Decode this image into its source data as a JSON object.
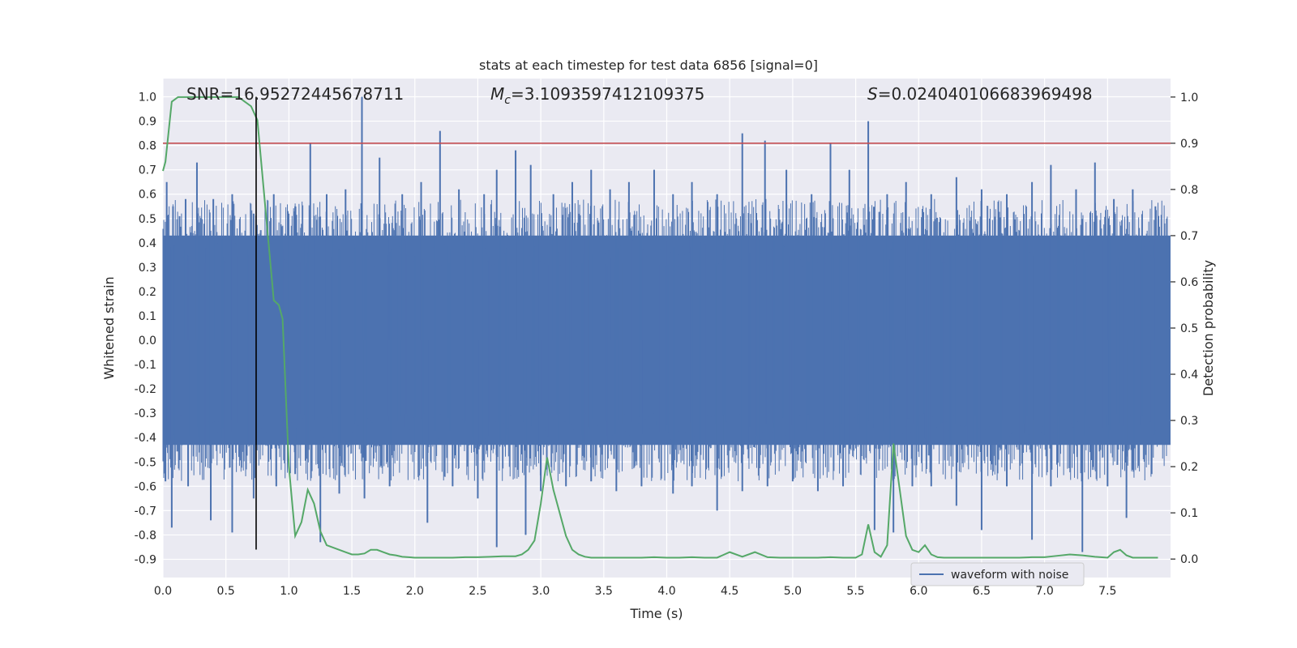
{
  "chart_data": {
    "type": "line",
    "title": "stats at each timestep for test data 6856 [signal=0]",
    "xlabel": "Time (s)",
    "ylabel": "Whitened strain",
    "ylabel_right": "Detection probability",
    "xlim": [
      0.0,
      8.0
    ],
    "ylim": [
      -0.975,
      1.075
    ],
    "ylim_right": [
      -0.04,
      1.04
    ],
    "x_ticks": [
      0.0,
      0.5,
      1.0,
      1.5,
      2.0,
      2.5,
      3.0,
      3.5,
      4.0,
      4.5,
      5.0,
      5.5,
      6.0,
      6.5,
      7.0,
      7.5
    ],
    "x_tick_labels": [
      "0.0",
      "0.5",
      "1.0",
      "1.5",
      "2.0",
      "2.5",
      "3.0",
      "3.5",
      "4.0",
      "4.5",
      "5.0",
      "5.5",
      "6.0",
      "6.5",
      "7.0",
      "7.5"
    ],
    "y_ticks": [
      -0.9,
      -0.8,
      -0.7,
      -0.6,
      -0.5,
      -0.4,
      -0.3,
      -0.2,
      -0.1,
      0.0,
      0.1,
      0.2,
      0.3,
      0.4,
      0.5,
      0.6,
      0.7,
      0.8,
      0.9,
      1.0
    ],
    "y_tick_labels": [
      "-0.9",
      "-0.8",
      "-0.7",
      "-0.6",
      "-0.5",
      "-0.4",
      "-0.3",
      "-0.2",
      "-0.1",
      "0.0",
      "0.1",
      "0.2",
      "0.3",
      "0.4",
      "0.5",
      "0.6",
      "0.7",
      "0.8",
      "0.9",
      "1.0"
    ],
    "y_right_ticks": [
      0.0,
      0.1,
      0.2,
      0.3,
      0.4,
      0.5,
      0.6,
      0.7,
      0.8,
      0.9,
      1.0
    ],
    "y_right_tick_labels": [
      "0.0",
      "0.1",
      "0.2",
      "0.3",
      "0.4",
      "0.5",
      "0.6",
      "0.7",
      "0.8",
      "0.9",
      "1.0"
    ],
    "grid": true,
    "legend_position": "bottom-right",
    "annotations": {
      "snr": "SNR=16.95272445678711",
      "mc_symbol": "M",
      "mc_subscript": "c",
      "mc_value": "=3.1093597412109375",
      "s_symbol": "S",
      "s_value": "=0.024040106683969498"
    },
    "series": [
      {
        "name": "waveform with noise",
        "kind": "noise-band",
        "color": "#4c72b0",
        "band_upper": 0.43,
        "band_lower": -0.43,
        "peaks_upper": [
          [
            0.03,
            0.65
          ],
          [
            0.08,
            0.55
          ],
          [
            0.18,
            0.58
          ],
          [
            0.27,
            0.73
          ],
          [
            0.4,
            0.58
          ],
          [
            0.55,
            0.6
          ],
          [
            0.72,
            0.52
          ],
          [
            0.88,
            0.6
          ],
          [
            1.05,
            0.55
          ],
          [
            1.17,
            0.81
          ],
          [
            1.3,
            0.6
          ],
          [
            1.45,
            0.62
          ],
          [
            1.58,
            1.0
          ],
          [
            1.72,
            0.75
          ],
          [
            1.9,
            0.6
          ],
          [
            2.05,
            0.65
          ],
          [
            2.2,
            0.86
          ],
          [
            2.35,
            0.62
          ],
          [
            2.55,
            0.6
          ],
          [
            2.65,
            0.7
          ],
          [
            2.8,
            0.78
          ],
          [
            2.92,
            0.72
          ],
          [
            3.1,
            0.6
          ],
          [
            3.25,
            0.65
          ],
          [
            3.4,
            0.7
          ],
          [
            3.55,
            0.62
          ],
          [
            3.7,
            0.65
          ],
          [
            3.9,
            0.7
          ],
          [
            4.05,
            0.6
          ],
          [
            4.2,
            0.65
          ],
          [
            4.4,
            0.6
          ],
          [
            4.6,
            0.85
          ],
          [
            4.78,
            0.82
          ],
          [
            4.95,
            0.7
          ],
          [
            5.15,
            0.6
          ],
          [
            5.3,
            0.81
          ],
          [
            5.45,
            0.7
          ],
          [
            5.6,
            0.9
          ],
          [
            5.75,
            0.6
          ],
          [
            5.9,
            0.65
          ],
          [
            6.1,
            0.6
          ],
          [
            6.3,
            0.67
          ],
          [
            6.5,
            0.62
          ],
          [
            6.7,
            0.6
          ],
          [
            6.9,
            0.65
          ],
          [
            7.05,
            0.72
          ],
          [
            7.25,
            0.62
          ],
          [
            7.4,
            0.73
          ],
          [
            7.55,
            0.58
          ],
          [
            7.7,
            0.62
          ],
          [
            7.88,
            0.55
          ]
        ],
        "peaks_lower": [
          [
            0.02,
            -0.58
          ],
          [
            0.07,
            -0.77
          ],
          [
            0.2,
            -0.6
          ],
          [
            0.38,
            -0.74
          ],
          [
            0.55,
            -0.79
          ],
          [
            0.72,
            -0.65
          ],
          [
            0.9,
            -0.6
          ],
          [
            1.05,
            -0.55
          ],
          [
            1.25,
            -0.83
          ],
          [
            1.4,
            -0.63
          ],
          [
            1.6,
            -0.65
          ],
          [
            1.8,
            -0.6
          ],
          [
            2.1,
            -0.75
          ],
          [
            2.3,
            -0.6
          ],
          [
            2.5,
            -0.65
          ],
          [
            2.65,
            -0.85
          ],
          [
            2.88,
            -0.8
          ],
          [
            3.0,
            -0.62
          ],
          [
            3.2,
            -0.6
          ],
          [
            3.4,
            -0.58
          ],
          [
            3.6,
            -0.62
          ],
          [
            3.8,
            -0.6
          ],
          [
            4.05,
            -0.63
          ],
          [
            4.2,
            -0.6
          ],
          [
            4.4,
            -0.7
          ],
          [
            4.6,
            -0.62
          ],
          [
            4.8,
            -0.6
          ],
          [
            5.0,
            -0.58
          ],
          [
            5.2,
            -0.62
          ],
          [
            5.4,
            -0.6
          ],
          [
            5.65,
            -0.78
          ],
          [
            5.8,
            -0.79
          ],
          [
            5.95,
            -0.6
          ],
          [
            6.1,
            -0.6
          ],
          [
            6.3,
            -0.68
          ],
          [
            6.5,
            -0.78
          ],
          [
            6.7,
            -0.6
          ],
          [
            6.9,
            -0.82
          ],
          [
            7.05,
            -0.6
          ],
          [
            7.3,
            -0.87
          ],
          [
            7.5,
            -0.6
          ],
          [
            7.65,
            -0.73
          ],
          [
            7.85,
            -0.55
          ]
        ]
      },
      {
        "kind": "line",
        "axis": "right",
        "color": "#55a868",
        "x": [
          0.0,
          0.02,
          0.07,
          0.12,
          0.2,
          0.3,
          0.4,
          0.5,
          0.6,
          0.65,
          0.7,
          0.75,
          0.8,
          0.85,
          0.88,
          0.92,
          0.95,
          1.0,
          1.05,
          1.1,
          1.15,
          1.2,
          1.25,
          1.3,
          1.35,
          1.4,
          1.45,
          1.5,
          1.55,
          1.6,
          1.65,
          1.7,
          1.75,
          1.8,
          1.85,
          1.9,
          1.95,
          2.0,
          2.1,
          2.2,
          2.3,
          2.4,
          2.5,
          2.6,
          2.7,
          2.8,
          2.85,
          2.9,
          2.95,
          3.0,
          3.05,
          3.1,
          3.15,
          3.2,
          3.25,
          3.3,
          3.35,
          3.4,
          3.5,
          3.6,
          3.7,
          3.8,
          3.9,
          4.0,
          4.1,
          4.2,
          4.3,
          4.4,
          4.5,
          4.6,
          4.7,
          4.8,
          4.9,
          5.0,
          5.1,
          5.2,
          5.3,
          5.4,
          5.5,
          5.55,
          5.6,
          5.65,
          5.7,
          5.75,
          5.8,
          5.85,
          5.9,
          5.95,
          6.0,
          6.05,
          6.1,
          6.15,
          6.2,
          6.3,
          6.4,
          6.5,
          6.6,
          6.7,
          6.8,
          6.9,
          7.0,
          7.1,
          7.2,
          7.3,
          7.4,
          7.5,
          7.55,
          7.6,
          7.65,
          7.7,
          7.75,
          7.8,
          7.9
        ],
        "y": [
          0.84,
          0.86,
          0.99,
          1.0,
          1.0,
          1.0,
          1.0,
          1.0,
          1.0,
          0.99,
          0.98,
          0.95,
          0.8,
          0.65,
          0.56,
          0.55,
          0.52,
          0.2,
          0.05,
          0.08,
          0.15,
          0.12,
          0.06,
          0.03,
          0.025,
          0.02,
          0.015,
          0.01,
          0.01,
          0.012,
          0.02,
          0.02,
          0.015,
          0.01,
          0.008,
          0.005,
          0.004,
          0.003,
          0.003,
          0.003,
          0.003,
          0.004,
          0.004,
          0.005,
          0.006,
          0.006,
          0.01,
          0.02,
          0.04,
          0.12,
          0.22,
          0.15,
          0.1,
          0.05,
          0.02,
          0.01,
          0.005,
          0.003,
          0.003,
          0.003,
          0.003,
          0.003,
          0.004,
          0.003,
          0.003,
          0.004,
          0.003,
          0.003,
          0.015,
          0.005,
          0.015,
          0.004,
          0.003,
          0.003,
          0.003,
          0.003,
          0.004,
          0.003,
          0.003,
          0.01,
          0.075,
          0.015,
          0.005,
          0.03,
          0.25,
          0.15,
          0.05,
          0.02,
          0.015,
          0.03,
          0.01,
          0.004,
          0.003,
          0.003,
          0.003,
          0.003,
          0.003,
          0.003,
          0.003,
          0.004,
          0.004,
          0.007,
          0.01,
          0.008,
          0.005,
          0.003,
          0.015,
          0.02,
          0.008,
          0.003,
          0.003,
          0.003,
          0.003
        ]
      }
    ],
    "threshold_line": {
      "axis": "right",
      "y": 0.9,
      "color": "#c44e52"
    },
    "vertical_line": {
      "x": 0.74,
      "y_top": 1.0,
      "y_bottom": -0.86,
      "color": "#000000"
    }
  }
}
